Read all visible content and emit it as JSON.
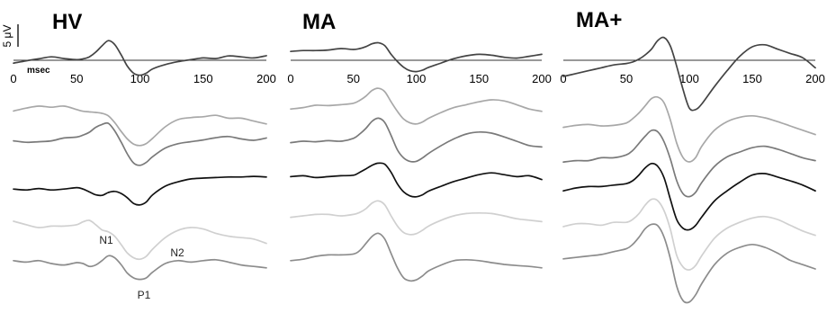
{
  "chart_data": [
    {
      "type": "line",
      "title": "HV",
      "x_unit": "msec",
      "xlim": [
        0,
        200
      ],
      "xticks": [
        "0",
        "50",
        "100",
        "150",
        "200"
      ],
      "scale_bar": "5 μV",
      "peak_labels": [
        "N1",
        "P1",
        "N2"
      ],
      "x": [
        0,
        10,
        20,
        30,
        40,
        50,
        55,
        60,
        65,
        70,
        75,
        80,
        85,
        90,
        95,
        100,
        105,
        110,
        120,
        130,
        140,
        150,
        160,
        170,
        180,
        190,
        200
      ],
      "series": [
        {
          "color": "#444444",
          "values": [
            -1.0,
            -0.2,
            0.5,
            1.2,
            0.6,
            0.2,
            0.5,
            1.2,
            2.8,
            5.0,
            6.8,
            5.5,
            2.0,
            -2.0,
            -4.5,
            -5.2,
            -4.5,
            -3.0,
            -1.5,
            -0.5,
            0.2,
            0.8,
            0.6,
            1.5,
            1.2,
            0.8,
            1.6
          ]
        },
        {
          "color": "#a8a8a8",
          "values": [
            0.5,
            1.5,
            2.2,
            1.8,
            2.2,
            1.0,
            0.4,
            0.2,
            0.0,
            -0.3,
            -1.2,
            -3.5,
            -6.5,
            -9.2,
            -11.0,
            -11.5,
            -10.8,
            -9.0,
            -5.0,
            -2.5,
            -1.8,
            -1.5,
            -1.0,
            -2.0,
            -2.0,
            -3.0,
            -4.0
          ]
        },
        {
          "color": "#7a7a7a",
          "values": [
            -0.5,
            -1.0,
            -0.8,
            -0.5,
            0.5,
            0.8,
            1.5,
            2.5,
            4.2,
            5.2,
            5.6,
            3.0,
            -0.8,
            -5.0,
            -8.2,
            -9.0,
            -8.0,
            -6.0,
            -3.0,
            -1.5,
            -0.8,
            -0.2,
            0.6,
            1.0,
            0.2,
            -0.3,
            0.5
          ]
        },
        {
          "color": "#111111",
          "values": [
            -1.0,
            -1.3,
            -0.8,
            -1.3,
            -1.0,
            -0.5,
            -1.0,
            -2.0,
            -3.0,
            -3.2,
            -2.2,
            -1.8,
            -2.5,
            -4.0,
            -6.0,
            -6.5,
            -5.5,
            -3.0,
            0.0,
            1.5,
            2.5,
            2.8,
            3.0,
            3.2,
            3.2,
            3.4,
            3.2
          ]
        },
        {
          "color": "#d0d0d0",
          "values": [
            2.2,
            1.0,
            0.0,
            0.5,
            0.5,
            1.0,
            2.0,
            2.5,
            1.0,
            -0.8,
            -1.5,
            -3.0,
            -5.8,
            -8.8,
            -10.5,
            -11.0,
            -10.0,
            -7.5,
            -3.5,
            -1.0,
            0.0,
            -0.5,
            -2.0,
            -3.0,
            -3.5,
            -4.0,
            -5.5
          ]
        },
        {
          "color": "#8c8c8c",
          "values": [
            -1.5,
            -2.0,
            -1.5,
            -2.5,
            -3.0,
            -2.2,
            -2.5,
            -3.5,
            -3.0,
            -1.5,
            0.2,
            -0.5,
            -2.8,
            -5.8,
            -7.5,
            -8.0,
            -7.5,
            -5.5,
            -2.5,
            -1.5,
            -2.0,
            -1.5,
            -1.2,
            -2.0,
            -3.0,
            -3.5,
            -4.0
          ]
        }
      ]
    },
    {
      "type": "line",
      "title": "MA",
      "xlim": [
        0,
        200
      ],
      "xticks": [
        "0",
        "50",
        "100",
        "150",
        "200"
      ],
      "x": [
        0,
        10,
        20,
        30,
        40,
        50,
        55,
        60,
        65,
        70,
        75,
        80,
        85,
        90,
        95,
        100,
        105,
        110,
        120,
        130,
        140,
        150,
        160,
        170,
        180,
        190,
        200
      ],
      "series": [
        {
          "color": "#444444",
          "values": [
            1.5,
            1.8,
            1.8,
            2.0,
            2.5,
            2.2,
            2.5,
            3.2,
            4.2,
            4.5,
            3.5,
            0.5,
            -2.0,
            -4.0,
            -5.2,
            -5.5,
            -5.0,
            -4.0,
            -2.5,
            -1.0,
            0.0,
            0.5,
            0.2,
            -0.5,
            -0.8,
            -0.2,
            0.5
          ]
        },
        {
          "color": "#a8a8a8",
          "values": [
            -1.0,
            -0.5,
            0.3,
            0.2,
            0.5,
            1.0,
            2.0,
            3.5,
            5.5,
            6.2,
            5.0,
            1.5,
            -1.8,
            -4.5,
            -5.8,
            -6.2,
            -5.5,
            -4.2,
            -2.2,
            -0.5,
            0.5,
            1.5,
            2.2,
            1.8,
            0.5,
            -1.0,
            -1.8
          ]
        },
        {
          "color": "#7a7a7a",
          "values": [
            -0.5,
            0.0,
            -0.2,
            0.2,
            0.0,
            1.0,
            2.5,
            4.5,
            7.0,
            8.0,
            6.5,
            2.0,
            -3.0,
            -5.8,
            -7.0,
            -7.0,
            -5.8,
            -4.2,
            -1.5,
            0.8,
            2.5,
            3.2,
            2.8,
            1.5,
            0.0,
            -1.5,
            -2.0
          ]
        },
        {
          "color": "#111111",
          "values": [
            0.5,
            0.8,
            0.2,
            0.5,
            0.8,
            1.0,
            2.0,
            3.2,
            4.5,
            5.2,
            4.8,
            2.0,
            -2.0,
            -4.8,
            -6.2,
            -6.5,
            -5.8,
            -4.5,
            -2.8,
            -1.2,
            0.0,
            1.2,
            1.8,
            1.2,
            0.5,
            0.8,
            -0.5
          ]
        },
        {
          "color": "#d0d0d0",
          "values": [
            -0.5,
            0.0,
            0.5,
            0.5,
            0.0,
            0.5,
            1.2,
            2.5,
            4.5,
            5.2,
            3.8,
            0.0,
            -3.5,
            -5.8,
            -6.5,
            -6.2,
            -5.0,
            -3.5,
            -1.5,
            0.0,
            0.8,
            1.0,
            0.8,
            0.0,
            -1.0,
            -1.5,
            -2.0
          ]
        },
        {
          "color": "#8c8c8c",
          "values": [
            -1.5,
            -1.0,
            0.0,
            0.5,
            0.5,
            0.8,
            2.0,
            4.5,
            7.0,
            8.0,
            6.0,
            1.0,
            -4.0,
            -7.5,
            -8.5,
            -8.2,
            -6.8,
            -5.0,
            -3.0,
            -1.5,
            -1.2,
            -1.5,
            -2.2,
            -2.8,
            -3.2,
            -3.5,
            -4.0
          ]
        }
      ]
    },
    {
      "type": "line",
      "title": "MA+",
      "xlim": [
        0,
        200
      ],
      "xticks": [
        "0",
        "50",
        "100",
        "150",
        "200"
      ],
      "x": [
        0,
        10,
        20,
        30,
        40,
        50,
        55,
        60,
        65,
        70,
        75,
        80,
        85,
        90,
        95,
        100,
        105,
        110,
        120,
        130,
        140,
        150,
        160,
        170,
        180,
        190,
        200
      ],
      "series": [
        {
          "color": "#444444",
          "values": [
            -2.5,
            -1.5,
            -0.5,
            0.5,
            1.5,
            2.0,
            2.5,
            3.5,
            5.0,
            7.0,
            10.0,
            11.0,
            8.0,
            1.0,
            -7.0,
            -13.5,
            -14.0,
            -12.0,
            -6.0,
            -0.5,
            4.5,
            7.8,
            8.5,
            7.0,
            5.5,
            4.0,
            0.5
          ]
        },
        {
          "color": "#a8a8a8",
          "values": [
            -0.5,
            0.2,
            0.5,
            0.0,
            0.2,
            1.0,
            2.5,
            4.5,
            7.0,
            9.5,
            10.0,
            8.0,
            2.0,
            -6.0,
            -11.0,
            -12.5,
            -11.0,
            -7.0,
            -1.5,
            1.5,
            3.0,
            3.5,
            2.8,
            1.5,
            0.0,
            -1.5,
            -3.0
          ]
        },
        {
          "color": "#7a7a7a",
          "values": [
            -1.0,
            -0.5,
            -0.5,
            0.5,
            0.5,
            1.5,
            3.0,
            5.5,
            8.0,
            10.0,
            9.5,
            6.0,
            0.0,
            -7.5,
            -12.0,
            -13.0,
            -11.5,
            -8.0,
            -2.5,
            0.8,
            2.5,
            4.0,
            4.5,
            3.5,
            2.0,
            0.5,
            -0.5
          ]
        },
        {
          "color": "#111111",
          "values": [
            -1.0,
            0.0,
            0.5,
            0.5,
            1.0,
            1.5,
            2.5,
            4.5,
            7.0,
            8.5,
            7.5,
            3.5,
            -4.0,
            -11.0,
            -14.0,
            -14.5,
            -13.0,
            -10.0,
            -4.5,
            -1.0,
            2.0,
            4.5,
            5.0,
            3.8,
            2.5,
            1.0,
            -1.0
          ]
        },
        {
          "color": "#d0d0d0",
          "values": [
            0.0,
            1.0,
            1.0,
            0.5,
            1.5,
            1.5,
            2.5,
            4.5,
            7.5,
            9.5,
            9.0,
            5.5,
            -1.0,
            -10.0,
            -14.0,
            -15.0,
            -13.5,
            -10.0,
            -4.0,
            -0.5,
            1.5,
            3.0,
            3.5,
            2.5,
            0.5,
            -1.5,
            -3.0
          ]
        },
        {
          "color": "#8c8c8c",
          "values": [
            -1.5,
            -1.0,
            -0.5,
            0.0,
            1.0,
            2.0,
            3.5,
            6.0,
            9.0,
            10.5,
            10.0,
            6.0,
            -1.5,
            -11.0,
            -16.0,
            -16.5,
            -14.0,
            -10.0,
            -3.5,
            0.5,
            2.5,
            3.5,
            2.5,
            0.5,
            -2.0,
            -3.5,
            -5.0
          ]
        }
      ]
    }
  ]
}
